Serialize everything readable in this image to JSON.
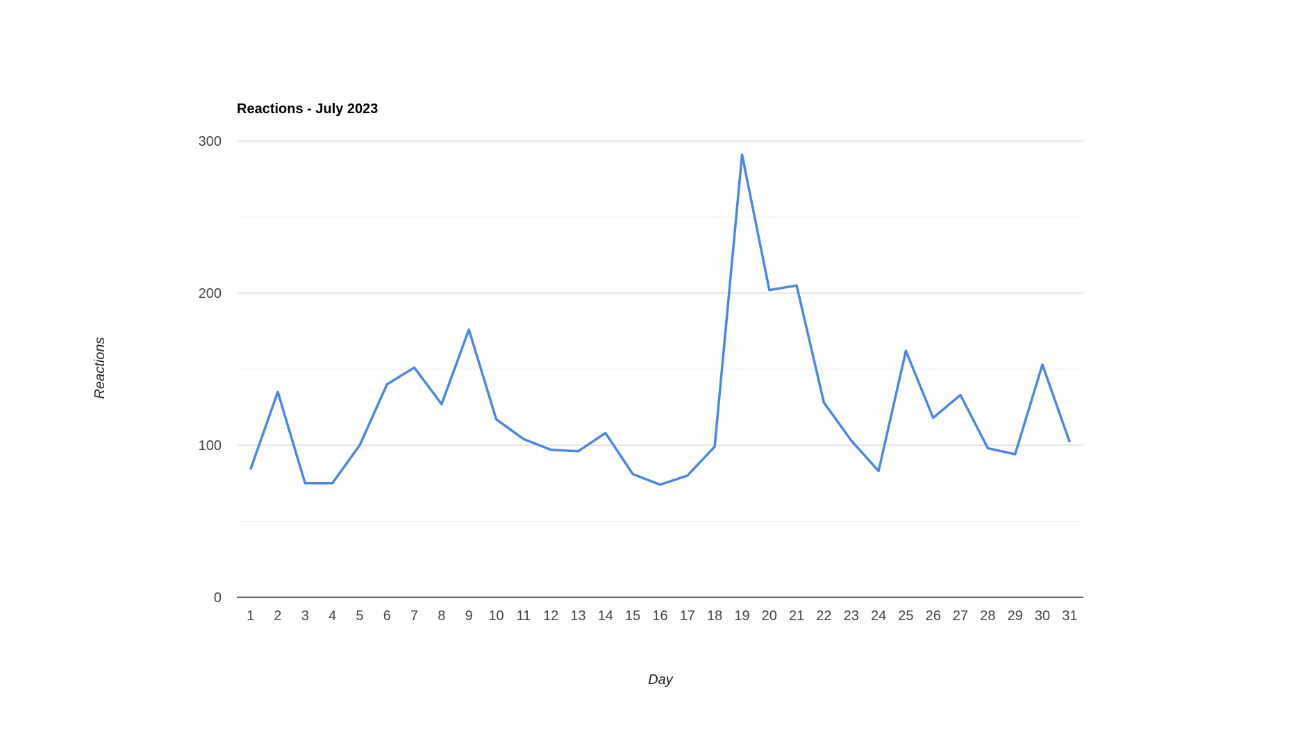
{
  "chart_data": {
    "type": "line",
    "title": "Reactions - July 2023",
    "xlabel": "Day",
    "ylabel": "Reactions",
    "ylim": [
      0,
      300
    ],
    "yticks": [
      0,
      100,
      200,
      300
    ],
    "grid": true,
    "legend": "none",
    "line_color": "#4a86e8",
    "x": [
      "1",
      "2",
      "3",
      "4",
      "5",
      "6",
      "7",
      "8",
      "9",
      "10",
      "11",
      "12",
      "13",
      "14",
      "15",
      "16",
      "17",
      "18",
      "19",
      "20",
      "21",
      "22",
      "23",
      "24",
      "25",
      "26",
      "27",
      "28",
      "29",
      "30",
      "31"
    ],
    "series": [
      {
        "values": [
          84,
          135,
          75,
          75,
          100,
          140,
          151,
          127,
          176,
          117,
          104,
          97,
          96,
          108,
          81,
          74,
          80,
          99,
          291,
          202,
          205,
          128,
          103,
          83,
          162,
          118,
          133,
          98,
          94,
          153,
          102
        ]
      }
    ]
  }
}
